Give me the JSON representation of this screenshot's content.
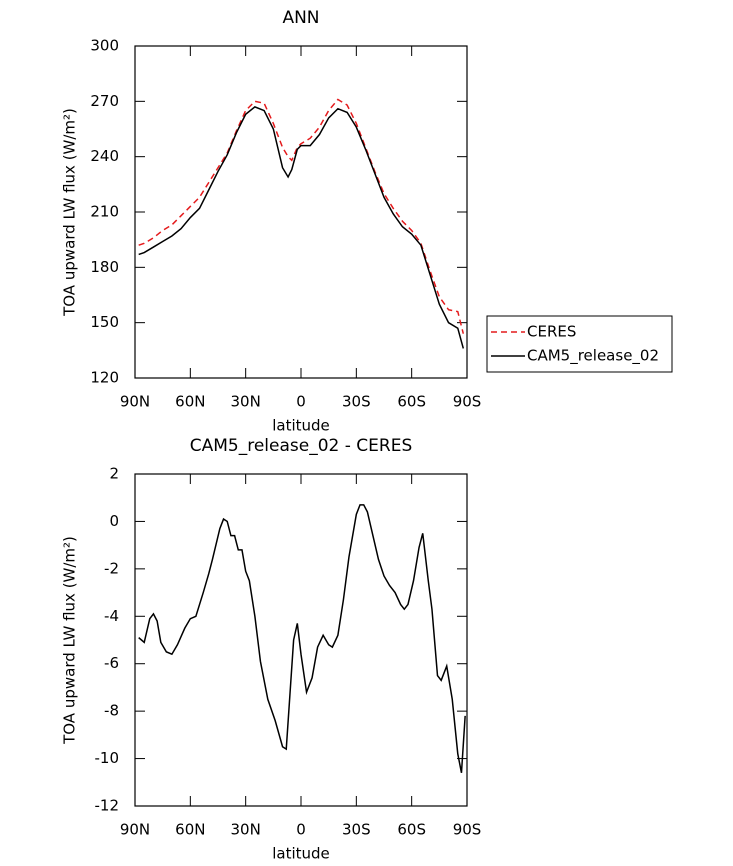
{
  "chart_data": [
    {
      "type": "line",
      "title": "ANN",
      "xlabel": "latitude",
      "ylabel": "TOA upward LW flux (W/m²)",
      "x": [
        88,
        85,
        80,
        75,
        70,
        65,
        60,
        55,
        50,
        45,
        40,
        35,
        30,
        25,
        20,
        15,
        10,
        7,
        5,
        2,
        0,
        -5,
        -10,
        -15,
        -20,
        -25,
        -30,
        -35,
        -40,
        -45,
        -50,
        -55,
        -60,
        -65,
        -70,
        -75,
        -80,
        -85,
        -88
      ],
      "xlim": [
        90,
        -90
      ],
      "xticks": [
        {
          "value": 90,
          "label": "90N"
        },
        {
          "value": 60,
          "label": "60N"
        },
        {
          "value": 30,
          "label": "30N"
        },
        0,
        {
          "value": -30,
          "label": "30S"
        },
        {
          "value": -60,
          "label": "60S"
        },
        {
          "value": -90,
          "label": "90S"
        }
      ],
      "ylim": [
        120,
        300
      ],
      "yticks": [
        120,
        150,
        180,
        210,
        240,
        270,
        300
      ],
      "legend": "right",
      "series": [
        {
          "name": "CERES",
          "color": "#e41a1c",
          "line_style": "dashed",
          "values": [
            192,
            193,
            196,
            200,
            203,
            208,
            213,
            218,
            226,
            234,
            242,
            254,
            265,
            270,
            269,
            258,
            245,
            240,
            238,
            245,
            247,
            250,
            256,
            265,
            271,
            268,
            258,
            245,
            232,
            220,
            212,
            205,
            200,
            193,
            178,
            164,
            157,
            156,
            144
          ]
        },
        {
          "name": "CAM5_release_02",
          "color": "#000000",
          "line_style": "solid",
          "values": [
            187,
            188,
            191,
            194,
            197,
            201,
            207,
            212,
            222,
            232,
            241,
            253,
            263,
            267,
            265,
            255,
            234,
            229,
            233,
            244,
            246,
            246,
            252,
            261,
            266,
            264,
            256,
            244,
            231,
            218,
            209,
            202,
            198,
            192,
            176,
            160,
            150,
            147,
            136
          ]
        }
      ]
    },
    {
      "type": "line",
      "title": "CAM5_release_02 - CERES",
      "xlabel": "latitude",
      "ylabel": "TOA upward LW flux (W/m²)",
      "x": [
        88,
        85,
        82,
        80,
        78,
        76,
        73,
        70,
        67,
        63,
        60,
        57,
        53,
        50,
        48,
        44,
        42,
        40,
        38,
        36,
        34,
        32,
        30,
        28,
        25,
        22,
        18,
        14,
        10,
        8,
        6,
        4,
        2,
        0,
        -3,
        -6,
        -9,
        -12,
        -15,
        -17,
        -20,
        -23,
        -26,
        -30,
        -32,
        -34,
        -36,
        -39,
        -42,
        -45,
        -48,
        -51,
        -54,
        -56,
        -58,
        -61,
        -64,
        -66,
        -69,
        -71,
        -74,
        -76,
        -79,
        -82,
        -85,
        -87,
        -89
      ],
      "xlim": [
        90,
        -90
      ],
      "xticks": [
        {
          "value": 90,
          "label": "90N"
        },
        {
          "value": 60,
          "label": "60N"
        },
        {
          "value": 30,
          "label": "30N"
        },
        0,
        {
          "value": -30,
          "label": "30S"
        },
        {
          "value": -60,
          "label": "60S"
        },
        {
          "value": -90,
          "label": "90S"
        }
      ],
      "ylim": [
        -12,
        2
      ],
      "yticks": [
        -12,
        -10,
        -8,
        -6,
        -4,
        -2,
        0,
        2
      ],
      "series": [
        {
          "color": "#000000",
          "line_style": "solid",
          "values": [
            -4.9,
            -5.1,
            -4.1,
            -3.9,
            -4.2,
            -5.1,
            -5.5,
            -5.6,
            -5.2,
            -4.5,
            -4.1,
            -4.0,
            -3.0,
            -2.2,
            -1.6,
            -0.3,
            0.1,
            0.0,
            -0.6,
            -0.6,
            -1.2,
            -1.2,
            -2.1,
            -2.5,
            -4.0,
            -5.9,
            -7.5,
            -8.4,
            -9.5,
            -9.6,
            -7.3,
            -5.0,
            -4.3,
            -5.6,
            -7.2,
            -6.6,
            -5.3,
            -4.8,
            -5.2,
            -5.3,
            -4.8,
            -3.3,
            -1.5,
            0.3,
            0.7,
            0.7,
            0.4,
            -0.6,
            -1.6,
            -2.3,
            -2.7,
            -3.0,
            -3.5,
            -3.7,
            -3.5,
            -2.5,
            -1.1,
            -0.5,
            -2.5,
            -3.7,
            -6.5,
            -6.7,
            -6.1,
            -7.5,
            -9.8,
            -10.6,
            -8.2
          ]
        }
      ]
    }
  ]
}
